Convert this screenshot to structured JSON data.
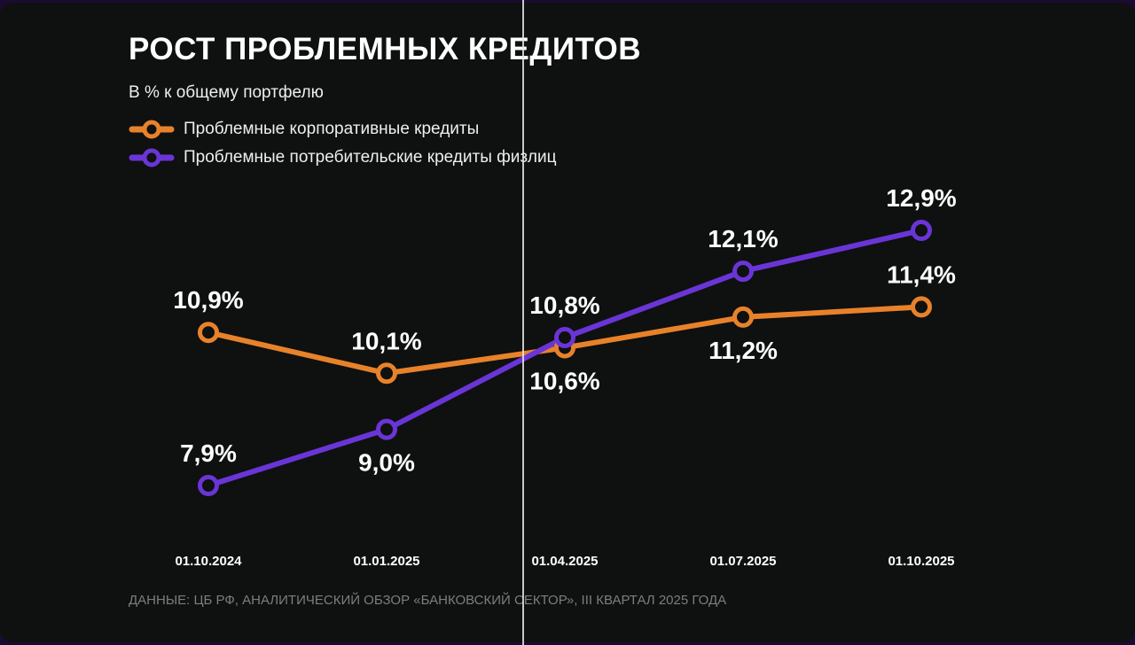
{
  "chart_data": {
    "type": "line",
    "title": "РОСТ ПРОБЛЕМНЫХ КРЕДИТОВ",
    "subtitle": "В % к общему портфелю",
    "categories": [
      "01.10.2024",
      "01.01.2025",
      "01.04.2025",
      "01.07.2025",
      "01.10.2025"
    ],
    "series": [
      {
        "name": "Проблемные корпоративные кредиты",
        "color": "#e8822a",
        "values": [
          10.9,
          10.1,
          10.6,
          11.2,
          11.4
        ],
        "labels": [
          "10,9%",
          "10,1%",
          "10,6%",
          "11,2%",
          "11,4%"
        ],
        "label_pos": [
          "above",
          "above",
          "below",
          "below",
          "above"
        ]
      },
      {
        "name": "Проблемные потребительские кредиты физлиц",
        "color": "#6a35d6",
        "values": [
          7.9,
          9.0,
          10.8,
          12.1,
          12.9
        ],
        "labels": [
          "7,9%",
          "9,0%",
          "10,8%",
          "12,1%",
          "12,9%"
        ],
        "label_pos": [
          "above",
          "below",
          "above",
          "above",
          "above"
        ]
      }
    ],
    "ylim": [
      7.9,
      12.9
    ],
    "grid": false,
    "legend": "top-left",
    "source": "ДАННЫЕ: ЦБ РФ, АНАЛИТИЧЕСКИЙ ОБЗОР «БАНКОВСКИЙ СЕКТОР», III КВАРТАЛ 2025 ГОДА"
  }
}
